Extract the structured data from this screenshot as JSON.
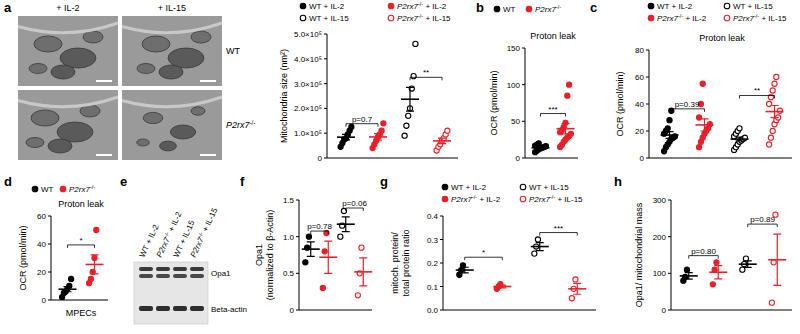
{
  "images": {
    "panel_label": "a",
    "columns": [
      "+ IL-2",
      "+ IL-15"
    ],
    "rows": [
      "WT",
      "P2rx7-/-"
    ]
  },
  "blot": {
    "panel_label": "e",
    "lanes": [
      "WT + IL-2",
      "P2rx7-/- + IL-2",
      "WT + IL-15",
      "P2rx7-/- + IL-15"
    ],
    "bands": [
      "Opa1",
      "Beta-actin"
    ]
  },
  "chart_data": [
    {
      "type": "scatter",
      "y_label": [
        "Mitochondria size (nm²)"
      ],
      "ylim": [
        0,
        500000
      ],
      "yticks": [
        0,
        {
          "value": 100000,
          "label": "1.0×10⁵"
        },
        {
          "value": 200000,
          "label": "2.0×10⁵"
        },
        {
          "value": 300000,
          "label": "3.0×10⁵"
        },
        {
          "value": 400000,
          "label": "4.0×10⁵"
        },
        {
          "value": 500000,
          "label": "5.0×10⁵"
        }
      ],
      "legend": "top",
      "series": [
        {
          "name": "WT + IL-2",
          "color": "#000000",
          "marker": "circle",
          "values": [
            45000,
            60000,
            75000,
            80000,
            95000,
            110000,
            125000
          ],
          "mean": 84000,
          "sem": 11000
        },
        {
          "name": "P2rx7-/- + IL-2",
          "color": "#e8202a",
          "marker": "circle",
          "values": [
            40000,
            55000,
            70000,
            85000,
            95000,
            110000,
            140000
          ],
          "mean": 85000,
          "sem": 13000
        },
        {
          "name": "WT + IL-15",
          "color": "#000000",
          "marker": "circle_open",
          "values": [
            90000,
            130000,
            170000,
            200000,
            280000,
            330000,
            460000
          ],
          "mean": 237000,
          "sem": 48000
        },
        {
          "name": "P2rx7-/- + IL-15",
          "color": "#e8202a",
          "marker": "circle_open",
          "values": [
            30000,
            45000,
            55000,
            70000,
            80000,
            95000,
            110000
          ],
          "mean": 69000,
          "sem": 11000
        }
      ],
      "annotations": [
        "p=0.7",
        "**"
      ]
    },
    {
      "type": "scatter",
      "panel_label": "b",
      "title": "Proton leak",
      "y_label": [
        "OCR (pmol/min)"
      ],
      "ylim": [
        0,
        150
      ],
      "yticks": [
        0,
        50,
        100,
        150
      ],
      "legend": "top",
      "series": [
        {
          "name": "WT",
          "color": "#000000",
          "marker": "circle",
          "values": [
            8,
            10,
            12,
            13,
            14,
            15,
            16,
            17,
            18,
            20
          ],
          "mean": 14,
          "sem": 1.2
        },
        {
          "name": "P2rx7-/-",
          "color": "#e8202a",
          "marker": "circle",
          "values": [
            15,
            18,
            22,
            25,
            28,
            30,
            33,
            35,
            38,
            42,
            48,
            85,
            100
          ],
          "mean": 40,
          "sem": 7
        }
      ],
      "annotations": [
        "***"
      ]
    },
    {
      "type": "scatter",
      "panel_label": "c",
      "title": "Proton leak",
      "y_label": [
        "OCR (pmol/min)"
      ],
      "ylim": [
        0,
        80
      ],
      "yticks": [
        0,
        20,
        40,
        60,
        80
      ],
      "legend": "top",
      "series": [
        {
          "name": "WT + IL-2",
          "color": "#000000",
          "marker": "circle",
          "values": [
            5,
            8,
            10,
            12,
            14,
            15,
            16,
            18,
            20,
            22,
            28,
            35
          ],
          "mean": 17,
          "sem": 2.5
        },
        {
          "name": "P2rx7-/- + IL-2",
          "color": "#e8202a",
          "marker": "circle",
          "values": [
            8,
            12,
            15,
            18,
            20,
            22,
            25,
            30,
            40,
            55
          ],
          "mean": 24.5,
          "sem": 4.5
        },
        {
          "name": "WT + IL-15",
          "color": "#000000",
          "marker": "circle_open",
          "values": [
            6,
            8,
            10,
            12,
            13,
            14,
            15,
            16,
            18,
            20,
            22
          ],
          "mean": 14,
          "sem": 1.4
        },
        {
          "name": "P2rx7-/- + IL-15",
          "color": "#e8202a",
          "marker": "circle_open",
          "values": [
            10,
            15,
            20,
            25,
            28,
            30,
            35,
            40,
            45,
            50,
            55,
            60
          ],
          "mean": 34.4,
          "sem": 4.5
        }
      ],
      "annotations": [
        "p=0.39",
        "**"
      ]
    },
    {
      "type": "scatter",
      "panel_label": "d",
      "title": "Proton leak",
      "y_label": [
        "OCR (pmol/min)"
      ],
      "x_label": "MPECs",
      "ylim": [
        0,
        60
      ],
      "yticks": [
        0,
        20,
        40,
        60
      ],
      "legend": "top",
      "series": [
        {
          "name": "WT",
          "color": "#000000",
          "marker": "circle",
          "values": [
            2,
            5,
            6,
            8,
            10,
            15
          ],
          "mean": 7.7,
          "sem": 1.8
        },
        {
          "name": "P2rx7-/-",
          "color": "#e8202a",
          "marker": "circle",
          "values": [
            12,
            15,
            20,
            30,
            50
          ],
          "mean": 25.4,
          "sem": 6.8
        }
      ],
      "annotations": [
        "*"
      ]
    },
    {
      "type": "scatter",
      "panel_label": "f",
      "y_label": [
        "Opa1",
        "(normalized to β-Actin)"
      ],
      "ylim": [
        0,
        1.5
      ],
      "yticks": [
        0,
        0.5,
        {
          "value": 1,
          "label": "1.0"
        },
        1.5
      ],
      "series": [
        {
          "color": "#000000",
          "marker": "circle",
          "values": [
            0.65,
            0.85,
            1.0
          ],
          "mean": 0.83,
          "sem": 0.1
        },
        {
          "color": "#e8202a",
          "marker": "circle",
          "values": [
            0.3,
            0.8,
            1.05
          ],
          "mean": 0.72,
          "sem": 0.22
        },
        {
          "color": "#000000",
          "marker": "circle_open",
          "values": [
            1.0,
            1.15,
            1.35
          ],
          "mean": 1.17,
          "sem": 0.1
        },
        {
          "color": "#e8202a",
          "marker": "circle_open",
          "values": [
            0.2,
            0.5,
            0.85
          ],
          "mean": 0.52,
          "sem": 0.19
        }
      ],
      "annotations": [
        "p=0.78",
        "p=0.06"
      ]
    },
    {
      "type": "scatter",
      "panel_label": "g",
      "y_label": [
        "mitoch. protein/",
        "total protein ratio"
      ],
      "ylim": [
        0,
        0.4
      ],
      "yticks": [
        {
          "value": 0,
          "label": "0.0"
        },
        0.1,
        0.2,
        0.3,
        0.4
      ],
      "legend": "top",
      "series": [
        {
          "name": "WT + IL-2",
          "color": "#000000",
          "marker": "circle",
          "values": [
            0.15,
            0.17,
            0.19
          ],
          "mean": 0.17,
          "sem": 0.012
        },
        {
          "name": "P2rx7-/- + IL-2",
          "color": "#e8202a",
          "marker": "circle",
          "values": [
            0.09,
            0.1,
            0.11
          ],
          "mean": 0.1,
          "sem": 0.006
        },
        {
          "name": "WT + IL-15",
          "color": "#000000",
          "marker": "circle_open",
          "values": [
            0.24,
            0.27,
            0.3
          ],
          "mean": 0.27,
          "sem": 0.017
        },
        {
          "name": "P2rx7-/- + IL-15",
          "color": "#e8202a",
          "marker": "circle_open",
          "values": [
            0.05,
            0.09,
            0.13
          ],
          "mean": 0.09,
          "sem": 0.023
        }
      ],
      "annotations": [
        "*",
        "***"
      ]
    },
    {
      "type": "scatter",
      "panel_label": "h",
      "y_label": [
        "Opa1/ mitochondrial mass"
      ],
      "ylim": [
        0,
        300
      ],
      "yticks": [
        0,
        100,
        200,
        300
      ],
      "series": [
        {
          "color": "#000000",
          "marker": "circle",
          "values": [
            80,
            90,
            110
          ],
          "mean": 93,
          "sem": 9
        },
        {
          "color": "#e8202a",
          "marker": "circle",
          "values": [
            70,
            110,
            130
          ],
          "mean": 103,
          "sem": 18
        },
        {
          "color": "#000000",
          "marker": "circle_open",
          "values": [
            110,
            125,
            140
          ],
          "mean": 125,
          "sem": 9
        },
        {
          "color": "#e8202a",
          "marker": "circle_open",
          "values": [
            20,
            130,
            260
          ],
          "mean": 137,
          "sem": 70
        }
      ],
      "annotations": [
        "p=0.80",
        "p=0.89"
      ]
    }
  ]
}
